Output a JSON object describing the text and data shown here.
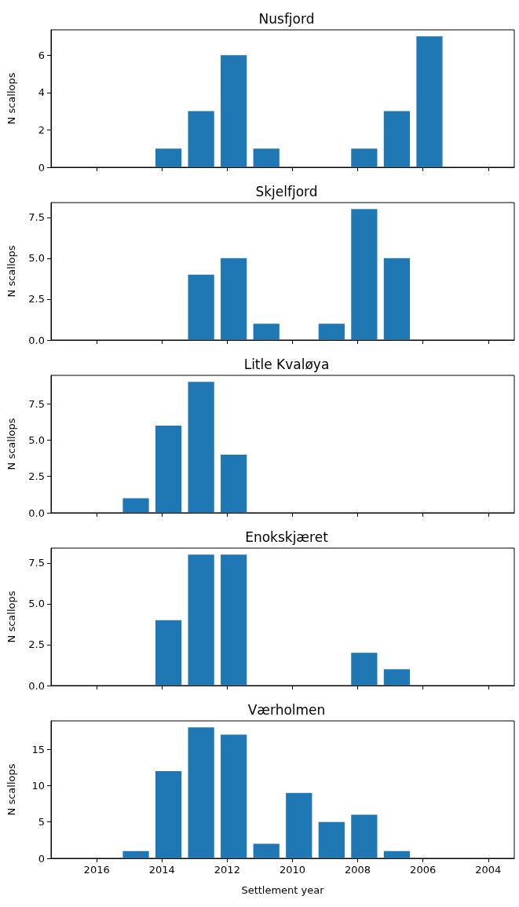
{
  "chart_data": [
    {
      "type": "bar",
      "title": "Nusfjord",
      "ylabel": "N scallops",
      "x": [
        2013.8,
        2012.8,
        2011.8,
        2010.8,
        2007.8,
        2006.8,
        2005.8
      ],
      "values": [
        1,
        3,
        6,
        1,
        1,
        3,
        7
      ],
      "color": "#1f77b4",
      "xlim": [
        2017.4,
        2003.2
      ],
      "xticks": [
        2016,
        2014,
        2012,
        2010,
        2008,
        2006,
        2004
      ],
      "ylim": [
        0,
        7.35
      ],
      "yticks": [
        0,
        2,
        4,
        6
      ],
      "tick_labels": "y",
      "grid": false
    },
    {
      "type": "bar",
      "title": "Skjelfjord",
      "ylabel": "N scallops",
      "x": [
        2012.8,
        2011.8,
        2010.8,
        2008.8,
        2007.8,
        2006.8
      ],
      "values": [
        4,
        5,
        1,
        1,
        8,
        5
      ],
      "color": "#1f77b4",
      "xlim": [
        2017.4,
        2003.2
      ],
      "xticks": [
        2016,
        2014,
        2012,
        2010,
        2008,
        2006,
        2004
      ],
      "ylim": [
        0,
        8.4
      ],
      "yticks": [
        {
          "value": 0,
          "label": "0.0"
        },
        {
          "value": 2.5,
          "label": "2.5"
        },
        {
          "value": 5,
          "label": "5.0"
        },
        {
          "value": 7.5,
          "label": "7.5"
        }
      ],
      "tick_labels": "y",
      "grid": false
    },
    {
      "type": "bar",
      "title": "Litle Kvaløya",
      "ylabel": "N scallops",
      "x": [
        2014.8,
        2013.8,
        2012.8,
        2011.8
      ],
      "values": [
        1,
        6,
        9,
        4
      ],
      "color": "#1f77b4",
      "xlim": [
        2017.4,
        2003.2
      ],
      "xticks": [
        2016,
        2014,
        2012,
        2010,
        2008,
        2006,
        2004
      ],
      "ylim": [
        0,
        9.45
      ],
      "yticks": [
        {
          "value": 0,
          "label": "0.0"
        },
        {
          "value": 2.5,
          "label": "2.5"
        },
        {
          "value": 5,
          "label": "5.0"
        },
        {
          "value": 7.5,
          "label": "7.5"
        }
      ],
      "tick_labels": "y",
      "grid": false
    },
    {
      "type": "bar",
      "title": "Enokskjæret",
      "ylabel": "N scallops",
      "x": [
        2013.8,
        2012.8,
        2011.8,
        2007.8,
        2006.8
      ],
      "values": [
        4,
        8,
        8,
        2,
        1
      ],
      "color": "#1f77b4",
      "xlim": [
        2017.4,
        2003.2
      ],
      "xticks": [
        2016,
        2014,
        2012,
        2010,
        2008,
        2006,
        2004
      ],
      "ylim": [
        0,
        8.4
      ],
      "yticks": [
        {
          "value": 0,
          "label": "0.0"
        },
        {
          "value": 2.5,
          "label": "2.5"
        },
        {
          "value": 5,
          "label": "5.0"
        },
        {
          "value": 7.5,
          "label": "7.5"
        }
      ],
      "tick_labels": "y",
      "grid": false
    },
    {
      "type": "bar",
      "title": "Værholmen",
      "ylabel": "N scallops",
      "xlabel": "Settlement year",
      "x": [
        2014.8,
        2013.8,
        2012.8,
        2011.8,
        2010.8,
        2009.8,
        2008.8,
        2007.8,
        2006.8
      ],
      "values": [
        1,
        12,
        18,
        17,
        2,
        9,
        5,
        6,
        1
      ],
      "color": "#1f77b4",
      "xlim": [
        2017.4,
        2003.2
      ],
      "xticks": [
        2016,
        2014,
        2012,
        2010,
        2008,
        2006,
        2004
      ],
      "ylim": [
        0,
        18.9
      ],
      "yticks": [
        0,
        5,
        10,
        15
      ],
      "grid": false
    }
  ]
}
